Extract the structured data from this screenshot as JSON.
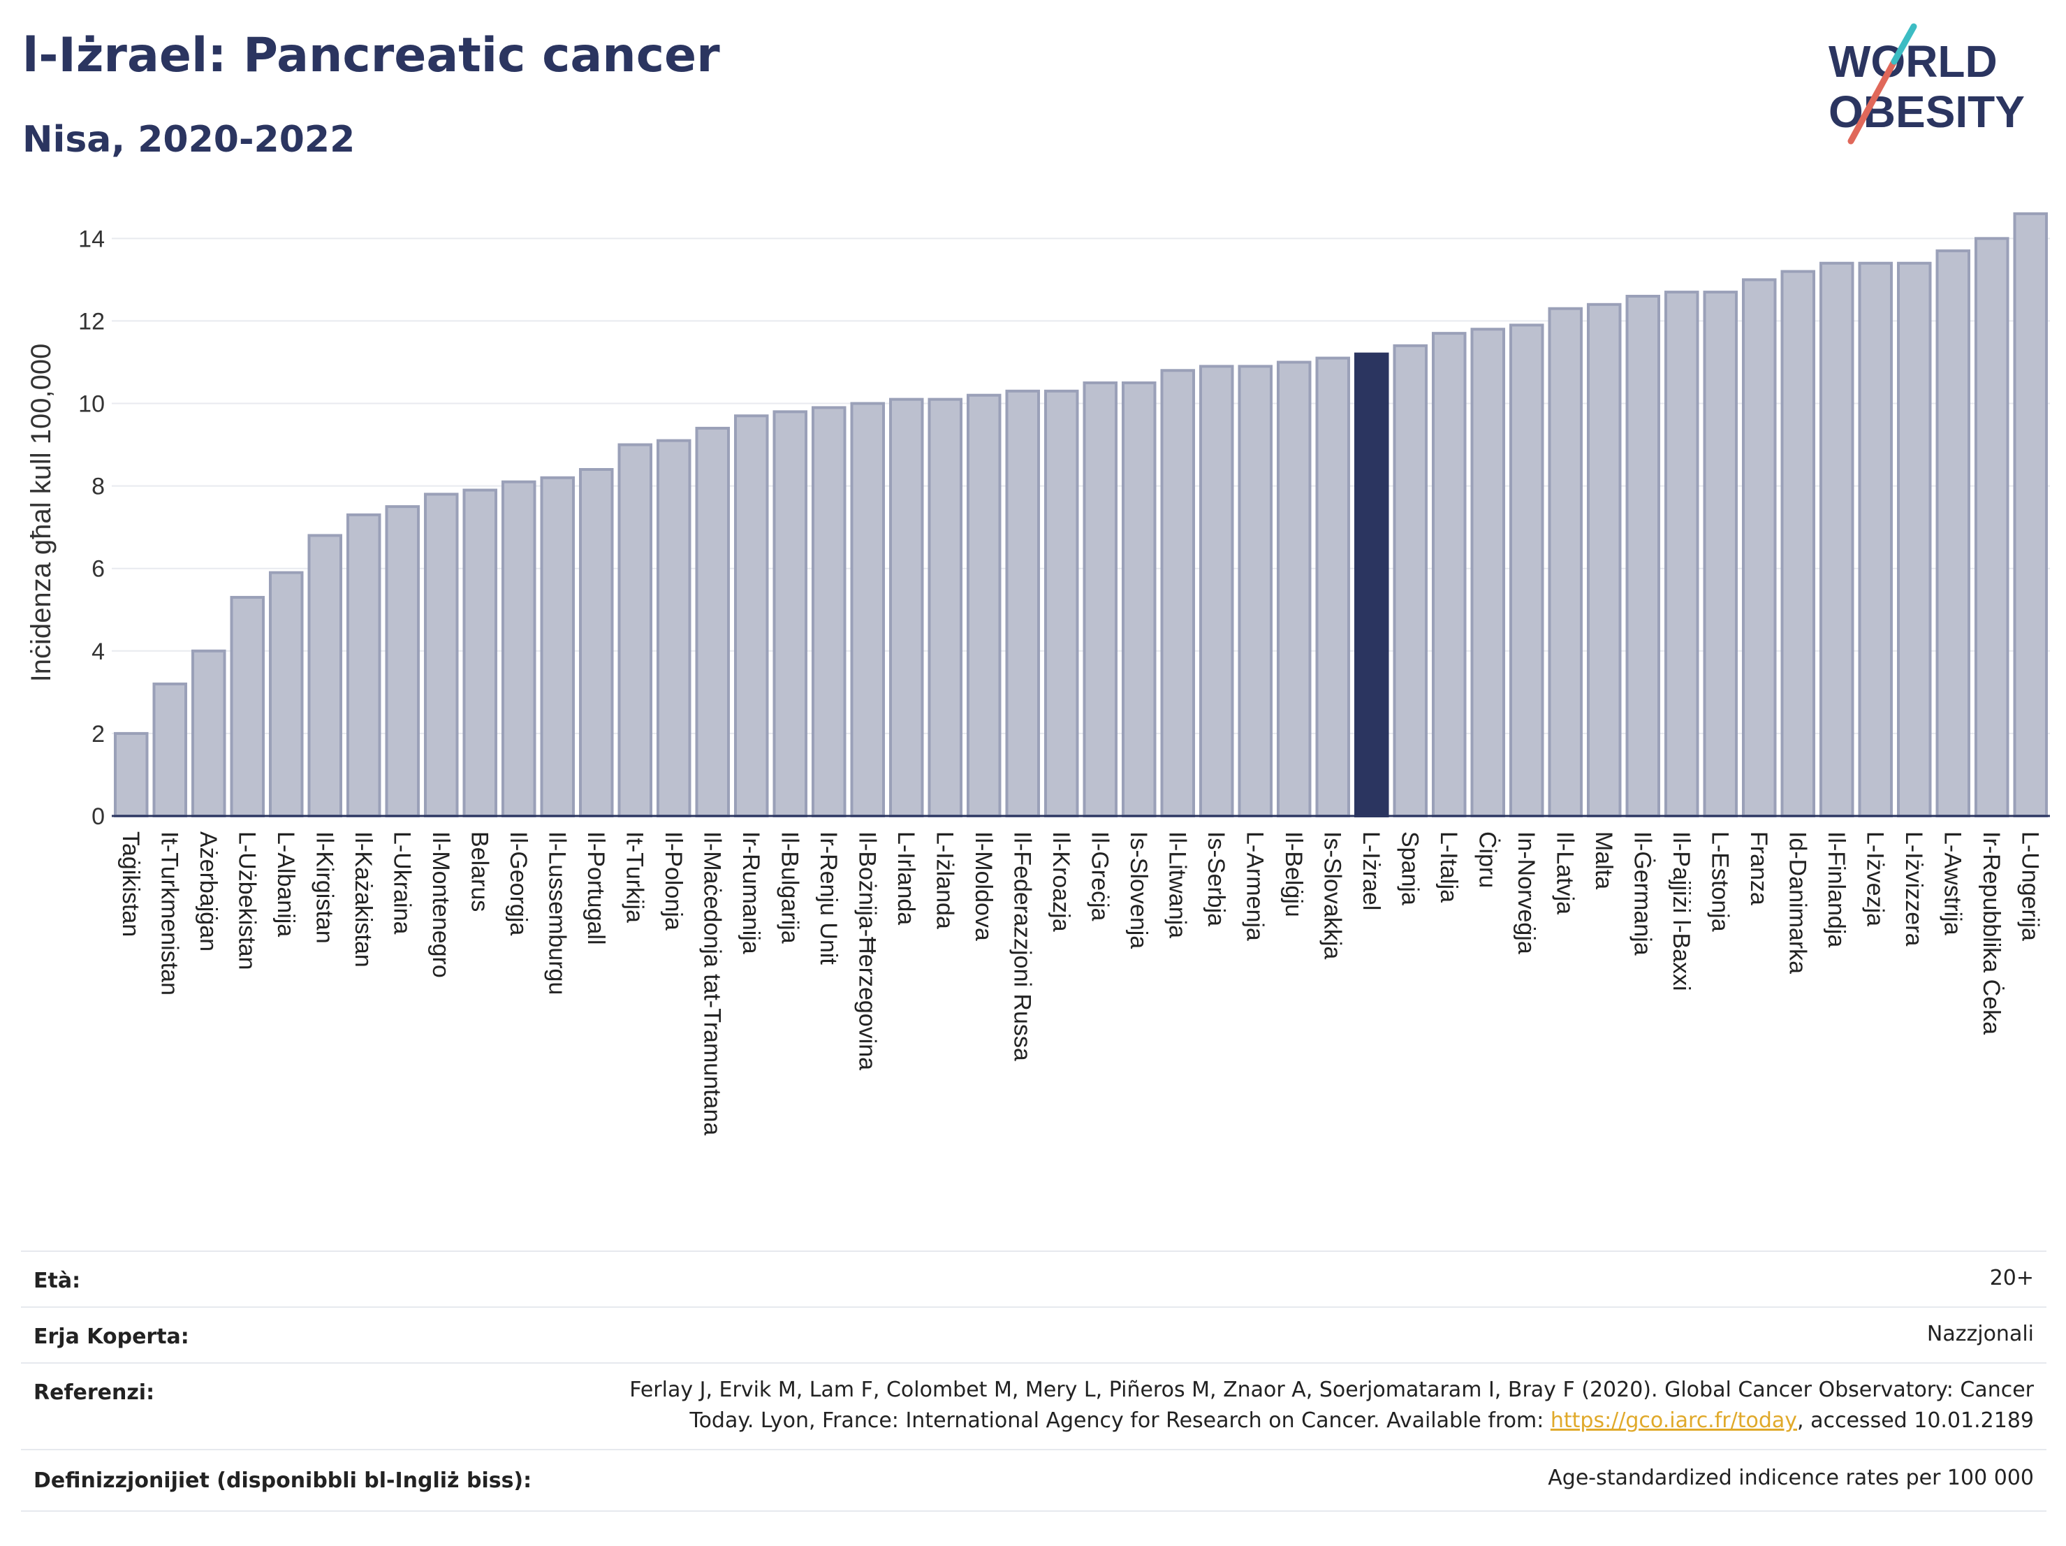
{
  "title": "l-Iżrael: Pancreatic cancer",
  "subtitle": "Nisa, 2020-2022",
  "logo": {
    "line1": "WORLD",
    "line2": "OBESITY",
    "colors": [
      "#2b3560",
      "#e0685a",
      "#3cbcc3"
    ]
  },
  "chart_data": {
    "type": "bar",
    "ylabel": "Inċidenza għal kull 100,000",
    "xlabel": "",
    "ylim": [
      0,
      14.7
    ],
    "yticks": [
      0,
      2,
      4,
      6,
      8,
      10,
      12,
      14
    ],
    "grid": true,
    "highlight_index": 32,
    "colors": {
      "bar": "#bcc0cf",
      "bar_edge": "#9aa0b8",
      "highlight": "#2b3560"
    },
    "categories": [
      "Taġikistan",
      "It-Turkmenistan",
      "Ażerbajġan",
      "L-Użbekistan",
      "L-Albanija",
      "Il-Kirgistan",
      "Il-Każakistan",
      "L-Ukraina",
      "Il-Montenegro",
      "Belarus",
      "Il-Georgja",
      "Il-Lussemburgu",
      "Il-Portugall",
      "It-Turkija",
      "Il-Polonja",
      "Il-Maċedonja tat-Tramuntana",
      "Ir-Rumanija",
      "Il-Bulgarija",
      "Ir-Renju Unit",
      "Il-Bożnija-Ħerzegovina",
      "L-Irlanda",
      "L-Iżlanda",
      "Il-Moldova",
      "Il-Federazzjoni Russa",
      "Il-Kroazja",
      "Il-Greċja",
      "Is-Slovenja",
      "Il-Litwanja",
      "Is-Serbja",
      "L-Armenja",
      "Il-Belġju",
      "Is-Slovakkja",
      "L-Iżrael",
      "Spanja",
      "L-Italja",
      "Ċipru",
      "In-Norveġja",
      "Il-Latvja",
      "Malta",
      "Il-Ġermanja",
      "Il-Pajjiżi l-Baxxi",
      "L-Estonja",
      "Franza",
      "Id-Danimarka",
      "Il-Finlandja",
      "L-Iżvezja",
      "L-Iżvizzera",
      "L-Awstrija",
      "Ir-Repubblika Ċeka",
      "L-Ungerija"
    ],
    "values": [
      2.0,
      3.2,
      4.0,
      5.3,
      5.9,
      6.8,
      7.3,
      7.5,
      7.8,
      7.9,
      8.1,
      8.2,
      8.4,
      9.0,
      9.1,
      9.4,
      9.7,
      9.8,
      9.9,
      10.0,
      10.1,
      10.1,
      10.2,
      10.3,
      10.3,
      10.5,
      10.5,
      10.8,
      10.9,
      10.9,
      11.0,
      11.1,
      11.2,
      11.4,
      11.7,
      11.8,
      11.9,
      12.3,
      12.4,
      12.6,
      12.7,
      12.7,
      13.0,
      13.2,
      13.4,
      13.4,
      13.4,
      13.7,
      14.0,
      14.6
    ]
  },
  "meta": {
    "age_label": "Età:",
    "age_value": "20+",
    "coverage_label": "Erja Koperta:",
    "coverage_value": "Nazzjonali",
    "ref_label": "Referenzi:",
    "ref_line1": "Ferlay J, Ervik M, Lam F, Colombet M, Mery L, Piñeros M, Znaor A, Soerjomataram I, Bray F (2020). Global Cancer Observatory: Cancer",
    "ref_line2_pre": "Today. Lyon, France: International Agency for Research on Cancer. Available from: ",
    "ref_link": "https://gco.iarc.fr/today",
    "ref_line2_post": ", accessed 10.01.2189",
    "def_label": "Definizzjonijiet (disponibbli bl-Ingliż biss):",
    "def_value": "Age-standardized indicence rates per 100 000"
  }
}
